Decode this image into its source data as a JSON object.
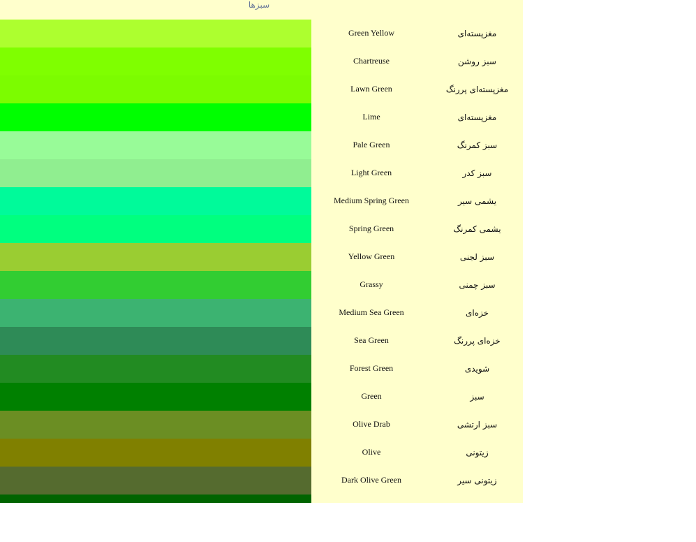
{
  "header": {
    "title": "سبزها"
  },
  "rows": [
    {
      "en": "Green Yellow",
      "fa": "مغزپسته‌ای",
      "color": "#ADFF2F"
    },
    {
      "en": "Chartreuse",
      "fa": "سبز روشن",
      "color": "#7FFF00"
    },
    {
      "en": "Lawn Green",
      "fa": "مغزپسته‌ای پررنگ",
      "color": "#7CFC00"
    },
    {
      "en": "Lime",
      "fa": "مغزپسته‌ای",
      "color": "#00FF00"
    },
    {
      "en": "Pale Green",
      "fa": "سبز کمرنگ",
      "color": "#98FB98"
    },
    {
      "en": "Light Green",
      "fa": "سبز کدر",
      "color": "#90EE90"
    },
    {
      "en": "Medium Spring Green",
      "fa": "یشمی سیر",
      "color": "#00FA9A"
    },
    {
      "en": "Spring Green",
      "fa": "یشمی کمرنگ",
      "color": "#00FF7F"
    },
    {
      "en": "Yellow Green",
      "fa": "سبز لجنی",
      "color": "#9ACD32"
    },
    {
      "en": "Grassy",
      "fa": "سبز چمنی",
      "color": "#32CD32"
    },
    {
      "en": "Medium Sea Green",
      "fa": "خزه‌ای",
      "color": "#3CB371"
    },
    {
      "en": "Sea Green",
      "fa": "خزه‌ای پررنگ",
      "color": "#2E8B57"
    },
    {
      "en": "Forest Green",
      "fa": "شویدی",
      "color": "#228B22"
    },
    {
      "en": "Green",
      "fa": "سبز",
      "color": "#008000"
    },
    {
      "en": "Olive Drab",
      "fa": "سبز ارتشی",
      "color": "#6B8E23"
    },
    {
      "en": "Olive",
      "fa": "زیتونی",
      "color": "#808000"
    },
    {
      "en": "Dark Olive Green",
      "fa": "زیتونی سیر",
      "color": "#556B2F"
    },
    {
      "en": "",
      "fa": "",
      "color": "#006400"
    }
  ]
}
